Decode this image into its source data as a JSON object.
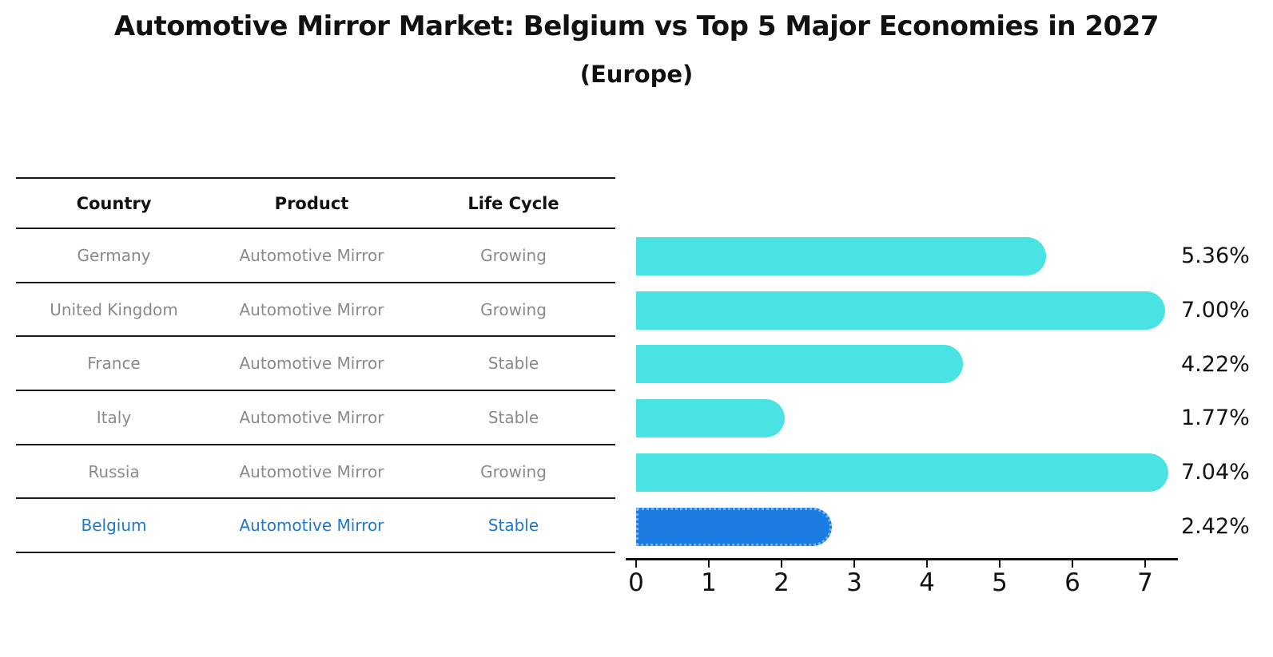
{
  "page": {
    "title": "Automotive Mirror Market: Belgium vs Top 5 Major Economies in 2027",
    "subtitle": "(Europe)"
  },
  "table": {
    "headers": [
      "Country",
      "Product",
      "Life Cycle"
    ],
    "rows": [
      {
        "country": "Germany",
        "product": "Automotive Mirror",
        "life_cycle": "Growing",
        "highlighted": false
      },
      {
        "country": "United Kingdom",
        "product": "Automotive Mirror",
        "life_cycle": "Growing",
        "highlighted": false
      },
      {
        "country": "France",
        "product": "Automotive Mirror",
        "life_cycle": "Stable",
        "highlighted": false
      },
      {
        "country": "Italy",
        "product": "Automotive Mirror",
        "life_cycle": "Stable",
        "highlighted": false
      },
      {
        "country": "Russia",
        "product": "Automotive Mirror",
        "life_cycle": "Growing",
        "highlighted": false
      },
      {
        "country": "Belgium",
        "product": "Automotive Mirror",
        "life_cycle": "Stable",
        "highlighted": true
      }
    ]
  },
  "chart_data": {
    "type": "bar",
    "orientation": "horizontal",
    "title": "Automotive Mirror Market: Belgium vs Top 5 Major Economies in 2027",
    "subtitle": "(Europe)",
    "categories": [
      "Germany",
      "United Kingdom",
      "France",
      "Italy",
      "Russia",
      "Belgium"
    ],
    "values": [
      5.36,
      7.0,
      4.22,
      1.77,
      7.04,
      2.42
    ],
    "value_labels": [
      "5.36%",
      "7.00%",
      "4.22%",
      "1.77%",
      "7.04%",
      "2.42%"
    ],
    "xlabel": "",
    "ylabel": "",
    "xticks": [
      0,
      1,
      2,
      3,
      4,
      5,
      6,
      7
    ],
    "xlim": [
      0,
      7.4
    ],
    "grid": false,
    "legend": false,
    "bar_color": "#49e3e3",
    "highlight_color": "#1b7ce4",
    "highlight_border_color": "#7ab5f2",
    "highlight_index": 5
  },
  "colors": {
    "header_text": "#111111",
    "row_text": "#8a8a8a",
    "highlight_text": "#1e78c8",
    "line": "#1a1a1a",
    "tick": "#111111",
    "value_label": "#111111"
  }
}
